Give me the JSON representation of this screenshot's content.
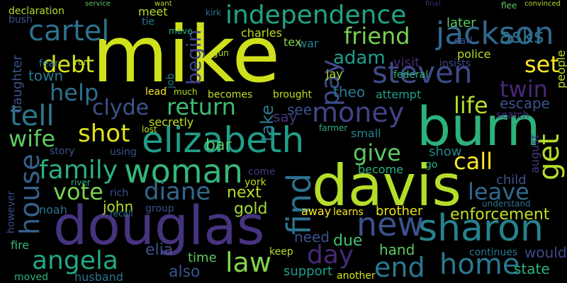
{
  "words": [
    "mike",
    "davis",
    "douglas",
    "burn",
    "elizabeth",
    "woman",
    "sharon",
    "independence",
    "cartel",
    "jackson",
    "steven",
    "money",
    "family",
    "shot",
    "new",
    "home",
    "angela",
    "tell",
    "wife",
    "house",
    "vote",
    "diane",
    "law",
    "day",
    "end",
    "give",
    "call",
    "leave",
    "life",
    "return",
    "debt",
    "help",
    "clyde",
    "friend",
    "adam",
    "pay",
    "begin",
    "find",
    "get",
    "set",
    "twin",
    "asks",
    "later",
    "escape",
    "enforcement",
    "john",
    "gold",
    "next",
    "york",
    "bar",
    "say",
    "see",
    "take",
    "secretly",
    "theo",
    "attempt",
    "visit",
    "police",
    "insists",
    "search",
    "show",
    "small",
    "become",
    "brother",
    "learns",
    "away",
    "due",
    "hand",
    "keep",
    "need",
    "support",
    "another",
    "state",
    "would",
    "continues",
    "understand",
    "child",
    "august",
    "people",
    "time",
    "also",
    "elia",
    "husband",
    "moved",
    "fire",
    "however",
    "noah",
    "rich",
    "group",
    "town",
    "daughter",
    "meet",
    "tie",
    "move",
    "charles",
    "war",
    "tex",
    "jay",
    "lead",
    "much",
    "becomes",
    "brought",
    "declaration",
    "bush",
    "kirk",
    "federal",
    "earl",
    "flee",
    "story",
    "using",
    "come",
    "river",
    "recall",
    "go",
    "fear",
    "run",
    "job",
    "lost",
    "farmer",
    "gun",
    "service",
    "want",
    "final",
    "convinced"
  ]
}
